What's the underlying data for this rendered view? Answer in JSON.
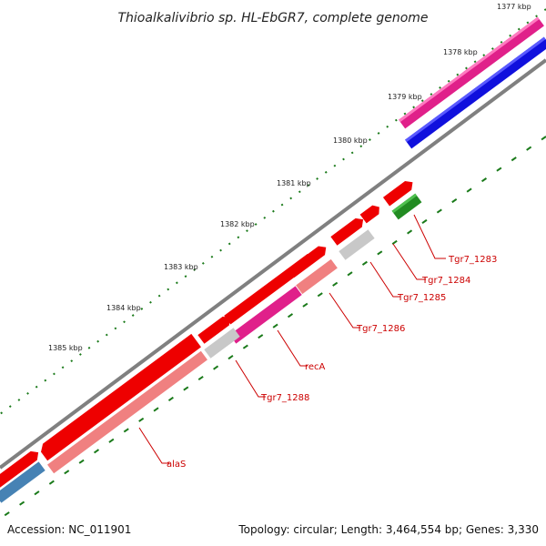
{
  "title": "Thioalkalivibrio sp. HL-EbGR7, complete genome",
  "footer": {
    "accession": "Accession: NC_011901",
    "summary": "Topology: circular; Length: 3,464,554 bp; Genes: 3,330"
  },
  "ticks": [
    "1377 kbp",
    "1378 kbp",
    "1379 kbp",
    "1380 kbp",
    "1381 kbp",
    "1382 kbp",
    "1383 kbp",
    "1384 kbp",
    "1385 kbp"
  ],
  "gene_labels": [
    "Tgr7_1283",
    "Tgr7_1284",
    "Tgr7_1285",
    "Tgr7_1286",
    "recA",
    "Tgr7_1288",
    "alaS"
  ],
  "colors": {
    "backbone": "#808080",
    "cds_red": "#ee0000",
    "gene_pink": "#f08080",
    "gene_gray": "#c8c8c8",
    "track_magenta": "#e0208a",
    "track_blue": "#1010dd",
    "track_green": "#228b22",
    "track_steelblue": "#4682b4",
    "tick_green": "#1a7a1a",
    "leader_red": "#cc0000"
  }
}
